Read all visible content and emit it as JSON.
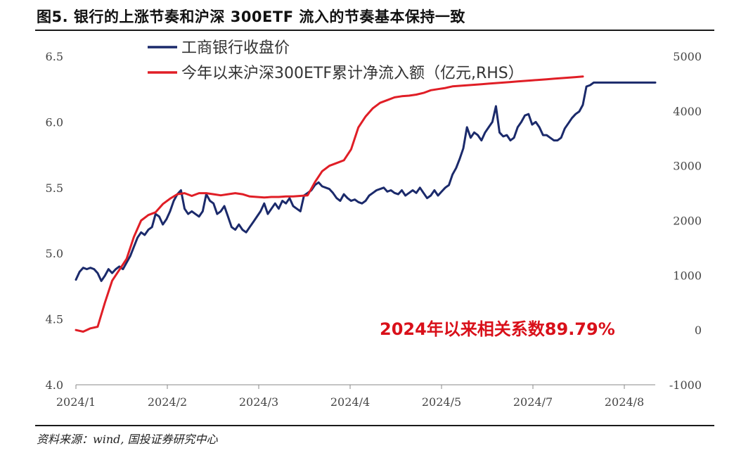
{
  "header": {
    "title": "图5. 银行的上涨节奏和沪深 300ETF 流入的节奏基本保持一致"
  },
  "footer": {
    "source": "资料来源：wind, 国投证券研究中心"
  },
  "colors": {
    "bank": "#1b2a6b",
    "etf": "#e01e26",
    "annotation": "#d9101a"
  },
  "chart_data": {
    "type": "line",
    "x_tick_labels": [
      "2024/1",
      "2024/2",
      "2024/3",
      "2024/4",
      "2024/5",
      "2024/7",
      "2024/8"
    ],
    "ylim": [
      4.0,
      6.5
    ],
    "y_ticks": [
      "6.5",
      "6.0",
      "5.5",
      "5.0",
      "4.5",
      "4.0"
    ],
    "y2lim": [
      -1000,
      5000
    ],
    "y2_ticks": [
      "5000",
      "4000",
      "3000",
      "2000",
      "1000",
      "0",
      "-1000"
    ],
    "legend_placement": "top-left",
    "annotation": "2024年以来相关系数89.79%",
    "series": [
      {
        "name": "工商银行收盘价",
        "axis": "left",
        "x": [
          0,
          1,
          2,
          3,
          4,
          5,
          6,
          7,
          8,
          9,
          10,
          11,
          12,
          13,
          14,
          15,
          16,
          17,
          18,
          19,
          20,
          21,
          22,
          23,
          24,
          25,
          26,
          27,
          28,
          29,
          30,
          31,
          32,
          33,
          34,
          35,
          36,
          37,
          38,
          39,
          40,
          41,
          42,
          43,
          44,
          45,
          46,
          47,
          48,
          49,
          50,
          51,
          52,
          53,
          54,
          55,
          56,
          57,
          58,
          59,
          60,
          61,
          62,
          63,
          64,
          65,
          66,
          67,
          68,
          69,
          70,
          71,
          72,
          73,
          74,
          75,
          76,
          77,
          78,
          79,
          80,
          81,
          82,
          83,
          84,
          85,
          86,
          87,
          88,
          89,
          90,
          91,
          92,
          93,
          94,
          95,
          96,
          97,
          98,
          99,
          100,
          101,
          102,
          103,
          104,
          105,
          106,
          107,
          108,
          109,
          110,
          111,
          112,
          113,
          114,
          115,
          116,
          117,
          118,
          119,
          120,
          121,
          122,
          123,
          124,
          125,
          126,
          127,
          128,
          129,
          130,
          131,
          132,
          133,
          134,
          135,
          136,
          137,
          138,
          139,
          140,
          141,
          142,
          143,
          144,
          145,
          146,
          147,
          148,
          149,
          150,
          151,
          152,
          153,
          154,
          155,
          156,
          157,
          158,
          159,
          160
        ],
        "values": [
          4.8,
          4.86,
          4.89,
          4.88,
          4.89,
          4.88,
          4.85,
          4.79,
          4.83,
          4.88,
          4.85,
          4.88,
          4.9,
          4.88,
          4.93,
          4.98,
          5.05,
          5.12,
          5.16,
          5.14,
          5.18,
          5.2,
          5.3,
          5.28,
          5.22,
          5.26,
          5.32,
          5.4,
          5.45,
          5.48,
          5.34,
          5.3,
          5.32,
          5.3,
          5.28,
          5.32,
          5.45,
          5.4,
          5.38,
          5.3,
          5.32,
          5.36,
          5.28,
          5.2,
          5.18,
          5.22,
          5.18,
          5.16,
          5.2,
          5.24,
          5.28,
          5.32,
          5.38,
          5.3,
          5.34,
          5.38,
          5.34,
          5.4,
          5.38,
          5.42,
          5.36,
          5.34,
          5.32,
          5.44,
          5.46,
          5.48,
          5.52,
          5.54,
          5.51,
          5.5,
          5.49,
          5.46,
          5.42,
          5.4,
          5.45,
          5.42,
          5.4,
          5.41,
          5.39,
          5.38,
          5.4,
          5.44,
          5.46,
          5.48,
          5.49,
          5.5,
          5.47,
          5.48,
          5.46,
          5.45,
          5.48,
          5.44,
          5.46,
          5.48,
          5.46,
          5.5,
          5.46,
          5.42,
          5.44,
          5.48,
          5.44,
          5.47,
          5.5,
          5.52,
          5.6,
          5.65,
          5.72,
          5.8,
          5.96,
          5.88,
          5.92,
          5.9,
          5.86,
          5.92,
          5.96,
          6.0,
          6.12,
          5.92,
          5.89,
          5.9,
          5.86,
          5.88,
          5.96,
          6.0,
          6.05,
          6.06,
          5.98,
          6.0,
          5.96,
          5.9,
          5.9,
          5.88,
          5.86,
          5.86,
          5.88,
          5.95,
          5.99,
          6.03,
          6.06,
          6.08,
          6.13,
          6.27,
          6.28,
          6.3,
          6.3,
          6.3,
          6.3,
          6.3,
          6.3,
          6.3,
          6.3,
          6.3,
          6.3,
          6.3,
          6.3,
          6.3,
          6.3,
          6.3,
          6.3,
          6.3,
          6.3
        ]
      },
      {
        "name": "今年以来沪深300ETF累计净流入额（亿元,RHS）",
        "axis": "right",
        "x": [
          0,
          2,
          4,
          6,
          8,
          10,
          12,
          14,
          16,
          18,
          20,
          22,
          24,
          26,
          28,
          30,
          32,
          34,
          36,
          38,
          40,
          42,
          44,
          46,
          48,
          50,
          52,
          54,
          56,
          58,
          60,
          62,
          64,
          66,
          68,
          70,
          72,
          74,
          76,
          78,
          80,
          82,
          84,
          86,
          88,
          90,
          92,
          94,
          96,
          98,
          100,
          102,
          104,
          106,
          108,
          110,
          112,
          114,
          116,
          118,
          120,
          122,
          124,
          126,
          128,
          130,
          132,
          134,
          136,
          138,
          140
        ],
        "values": [
          0,
          -30,
          30,
          60,
          500,
          900,
          1100,
          1300,
          1700,
          2000,
          2100,
          2150,
          2300,
          2400,
          2480,
          2500,
          2450,
          2500,
          2500,
          2480,
          2460,
          2480,
          2500,
          2480,
          2440,
          2430,
          2420,
          2430,
          2430,
          2440,
          2440,
          2450,
          2460,
          2700,
          2900,
          3000,
          3050,
          3100,
          3300,
          3700,
          3900,
          4050,
          4150,
          4200,
          4250,
          4270,
          4280,
          4300,
          4330,
          4380,
          4400,
          4420,
          4450,
          4460,
          4470,
          4480,
          4490,
          4500,
          4510,
          4520,
          4530,
          4540,
          4550,
          4560,
          4570,
          4580,
          4590,
          4600,
          4610,
          4620,
          4630
        ]
      }
    ]
  }
}
